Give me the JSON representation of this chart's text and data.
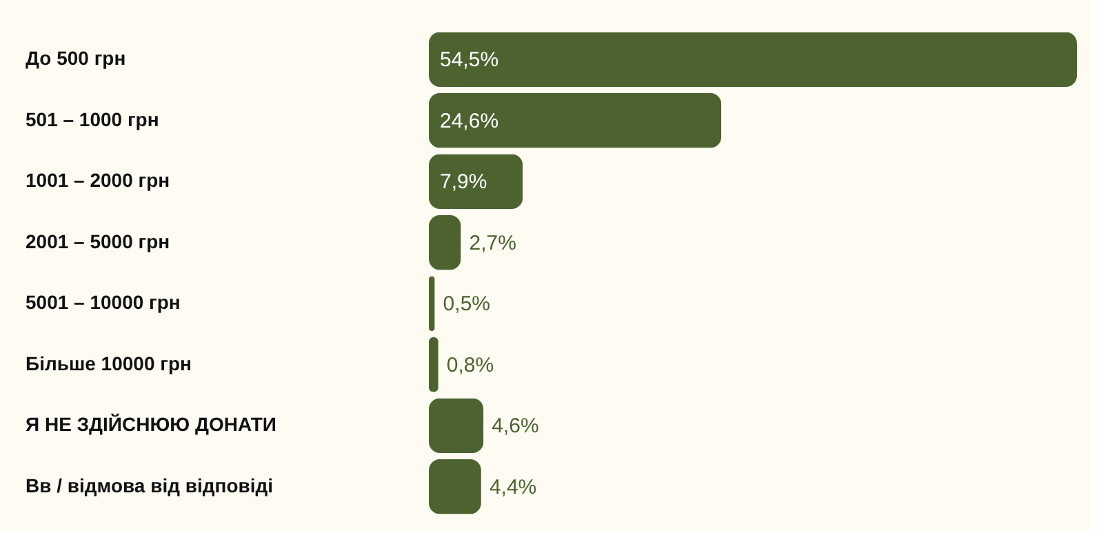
{
  "chart_data": {
    "type": "bar",
    "orientation": "horizontal",
    "categories": [
      "До 500 грн",
      "501 – 1000 грн",
      "1001 – 2000 грн",
      "2001 – 5000 грн",
      "5001 – 10000 грн",
      "Більше 10000 грн",
      "Я НЕ ЗДІЙСНЮЮ ДОНАТИ",
      "Вв / відмова від відповіді"
    ],
    "values": [
      54.5,
      24.6,
      7.9,
      2.7,
      0.5,
      0.8,
      4.6,
      4.4
    ],
    "value_labels": [
      "54,5%",
      "24,6%",
      "7,9%",
      "2,7%",
      "0,5%",
      "0,8%",
      "4,6%",
      "4,4%"
    ],
    "color": "#4c6330"
  }
}
